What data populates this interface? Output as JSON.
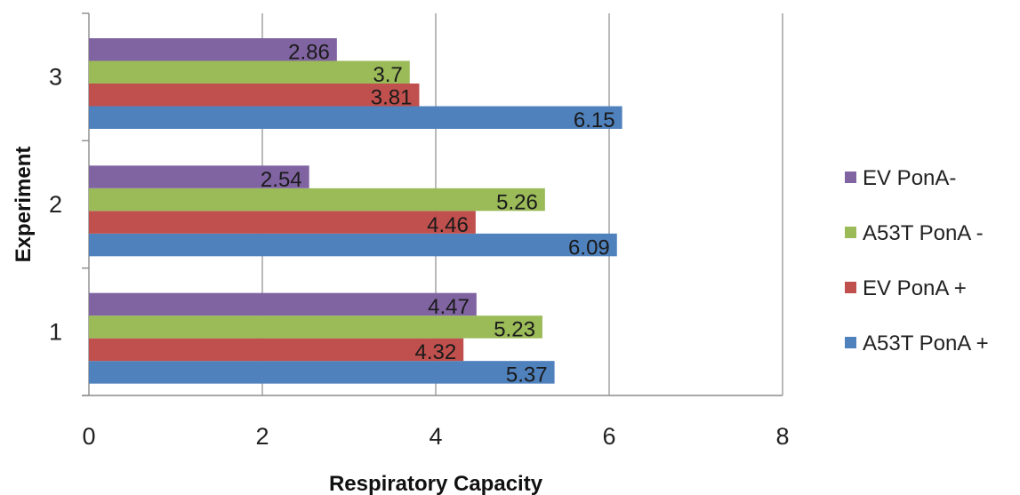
{
  "chart_data": {
    "type": "bar",
    "orientation": "horizontal",
    "title": "",
    "xlabel": "Respiratory Capacity",
    "ylabel": "Experiment",
    "categories": [
      "1",
      "2",
      "3"
    ],
    "xlim": [
      0,
      8
    ],
    "xticks": [
      "0",
      "2",
      "4",
      "6",
      "8"
    ],
    "grid": true,
    "legend_position": "right",
    "series": [
      {
        "name": "A53T PonA +",
        "color": "#4F81BD",
        "values": [
          5.37,
          6.09,
          6.15
        ],
        "labels": [
          "5.37",
          "6.09",
          "6.15"
        ]
      },
      {
        "name": "EV PonA +",
        "color": "#C0504D",
        "values": [
          4.32,
          4.46,
          3.81
        ],
        "labels": [
          "4.32",
          "4.46",
          "3.81"
        ]
      },
      {
        "name": "A53T PonA -",
        "color": "#9BBB59",
        "values": [
          5.23,
          5.26,
          3.7
        ],
        "labels": [
          "5.23",
          "5.26",
          "3.7"
        ]
      },
      {
        "name": "EV PonA-",
        "color": "#8064A2",
        "values": [
          4.47,
          2.54,
          2.86
        ],
        "labels": [
          "4.47",
          "2.54",
          "2.86"
        ]
      }
    ],
    "legend_order": [
      "EV PonA-",
      "A53T PonA -",
      "EV PonA +",
      "A53T PonA +"
    ]
  }
}
